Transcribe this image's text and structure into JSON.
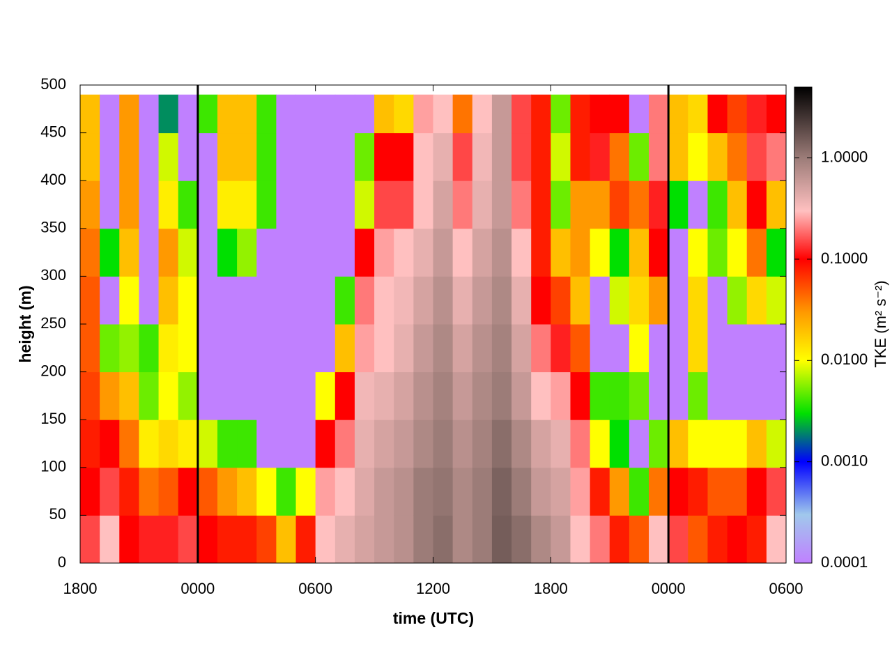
{
  "chart_data": {
    "type": "heatmap",
    "xlabel": "time (UTC)",
    "ylabel": "height (m)",
    "colorbar_label": "TKE (m² s⁻²)",
    "xlim": [
      0,
      36
    ],
    "xticks": [
      {
        "value": 0,
        "label": "1800"
      },
      {
        "value": 6,
        "label": "0000"
      },
      {
        "value": 12,
        "label": "0600"
      },
      {
        "value": 18,
        "label": "1200"
      },
      {
        "value": 24,
        "label": "1800"
      },
      {
        "value": 30,
        "label": "0000"
      },
      {
        "value": 36,
        "label": "0600"
      }
    ],
    "ylim": [
      0,
      500
    ],
    "yticks": [
      0,
      50,
      100,
      150,
      200,
      250,
      300,
      350,
      400,
      450,
      500
    ],
    "x_bins": [
      0,
      1,
      2,
      3,
      4,
      5,
      6,
      7,
      8,
      9,
      10,
      11,
      12,
      13,
      14,
      15,
      16,
      17,
      18,
      19,
      20,
      21,
      22,
      23,
      24,
      25,
      26,
      27,
      28,
      29,
      30,
      31,
      32,
      33,
      34,
      35,
      36
    ],
    "y_bins": [
      0,
      50,
      100,
      150,
      200,
      250,
      300,
      350,
      400,
      450,
      490
    ],
    "values": [
      [
        0.15,
        0.1,
        0.08,
        0.06,
        0.05,
        0.05,
        0.04,
        0.03,
        0.02,
        0.02
      ],
      [
        0.3,
        0.15,
        0.1,
        0.03,
        0.005,
        0.0001,
        0.003,
        0.0001,
        0.0001,
        0.0001
      ],
      [
        0.1,
        0.08,
        0.04,
        0.02,
        0.006,
        0.01,
        0.02,
        0.03,
        0.03,
        0.03
      ],
      [
        0.12,
        0.04,
        0.012,
        0.005,
        0.004,
        0.0001,
        0.0001,
        0.0001,
        0.0001,
        0.0001
      ],
      [
        0.12,
        0.05,
        0.015,
        0.01,
        0.012,
        0.02,
        0.03,
        0.012,
        0.008,
        0.002
      ],
      [
        0.15,
        0.1,
        0.012,
        0.006,
        0.01,
        0.01,
        0.008,
        0.004,
        0.0001,
        0.0001
      ],
      [
        0.1,
        0.05,
        0.008,
        0.0001,
        0.0001,
        0.0001,
        0.0001,
        0.0001,
        0.0001,
        0.004
      ],
      [
        0.08,
        0.03,
        0.004,
        0.0001,
        0.0001,
        0.0001,
        0.003,
        0.012,
        0.02,
        0.02
      ],
      [
        0.08,
        0.02,
        0.004,
        0.0001,
        0.0001,
        0.0001,
        0.006,
        0.012,
        0.02,
        0.02
      ],
      [
        0.06,
        0.01,
        0.0001,
        0.0001,
        0.0001,
        0.0001,
        0.0001,
        0.004,
        0.004,
        0.004
      ],
      [
        0.02,
        0.004,
        0.0001,
        0.0001,
        0.0001,
        0.0001,
        0.0001,
        0.0001,
        0.0001,
        0.0001
      ],
      [
        0.08,
        0.01,
        0.0001,
        0.0001,
        0.0001,
        0.0001,
        0.0001,
        0.0001,
        0.0001,
        0.0001
      ],
      [
        0.3,
        0.25,
        0.1,
        0.01,
        0.0001,
        0.0001,
        0.0001,
        0.0001,
        0.0001,
        0.0001
      ],
      [
        0.4,
        0.3,
        0.2,
        0.1,
        0.02,
        0.004,
        0.0001,
        0.0001,
        0.0001,
        0.0001
      ],
      [
        0.5,
        0.45,
        0.4,
        0.35,
        0.25,
        0.2,
        0.1,
        0.008,
        0.005,
        0.0001
      ],
      [
        0.6,
        0.6,
        0.5,
        0.4,
        0.3,
        0.3,
        0.25,
        0.15,
        0.1,
        0.02
      ],
      [
        0.7,
        0.7,
        0.6,
        0.5,
        0.4,
        0.35,
        0.3,
        0.15,
        0.1,
        0.015
      ],
      [
        1.0,
        1.0,
        0.8,
        0.7,
        0.6,
        0.5,
        0.4,
        0.3,
        0.3,
        0.25
      ],
      [
        1.2,
        1.1,
        1.0,
        0.9,
        0.8,
        0.7,
        0.6,
        0.5,
        0.4,
        0.3
      ],
      [
        0.8,
        0.8,
        0.7,
        0.6,
        0.5,
        0.4,
        0.3,
        0.2,
        0.15,
        0.04
      ],
      [
        1.0,
        1.0,
        0.9,
        0.8,
        0.7,
        0.6,
        0.5,
        0.4,
        0.35,
        0.3
      ],
      [
        1.5,
        1.4,
        1.2,
        1.0,
        0.9,
        0.8,
        0.7,
        0.6,
        0.6,
        0.6
      ],
      [
        1.2,
        1.0,
        0.8,
        0.6,
        0.5,
        0.4,
        0.3,
        0.2,
        0.15,
        0.15
      ],
      [
        0.8,
        0.6,
        0.5,
        0.3,
        0.2,
        0.1,
        0.08,
        0.08,
        0.08,
        0.08
      ],
      [
        0.6,
        0.5,
        0.4,
        0.25,
        0.12,
        0.06,
        0.02,
        0.005,
        0.008,
        0.005
      ],
      [
        0.3,
        0.25,
        0.2,
        0.1,
        0.05,
        0.02,
        0.03,
        0.03,
        0.08,
        0.08
      ],
      [
        0.2,
        0.08,
        0.01,
        0.004,
        0.0001,
        0.0001,
        0.01,
        0.03,
        0.12,
        0.1
      ],
      [
        0.08,
        0.03,
        0.003,
        0.004,
        0.0001,
        0.008,
        0.003,
        0.06,
        0.04,
        0.1
      ],
      [
        0.05,
        0.004,
        0.0001,
        0.005,
        0.01,
        0.015,
        0.02,
        0.04,
        0.005,
        0.0001
      ],
      [
        0.3,
        0.04,
        0.005,
        0.0001,
        0.0001,
        0.03,
        0.1,
        0.12,
        0.2,
        0.2
      ],
      [
        0.15,
        0.1,
        0.02,
        0.0001,
        0.0001,
        0.0001,
        0.0001,
        0.003,
        0.02,
        0.02
      ],
      [
        0.05,
        0.08,
        0.01,
        0.005,
        0.015,
        0.015,
        0.01,
        0.0001,
        0.01,
        0.015
      ],
      [
        0.08,
        0.05,
        0.01,
        0.0001,
        0.0001,
        0.0001,
        0.005,
        0.004,
        0.02,
        0.1
      ],
      [
        0.1,
        0.05,
        0.01,
        0.0001,
        0.0001,
        0.006,
        0.01,
        0.02,
        0.04,
        0.06
      ],
      [
        0.08,
        0.1,
        0.02,
        0.0001,
        0.0001,
        0.015,
        0.04,
        0.1,
        0.15,
        0.12
      ],
      [
        0.3,
        0.15,
        0.008,
        0.0001,
        0.0001,
        0.008,
        0.003,
        0.02,
        0.2,
        0.1
      ]
    ],
    "vlines": [
      6,
      30
    ],
    "vline_color": "#000000",
    "clim": [
      0.0001,
      5
    ],
    "clog": true,
    "cticks": [
      {
        "value": 0.0001,
        "label": "0.0001"
      },
      {
        "value": 0.001,
        "label": "0.0010"
      },
      {
        "value": 0.01,
        "label": "0.0100"
      },
      {
        "value": 0.1,
        "label": "0.1000"
      },
      {
        "value": 1,
        "label": "1.0000"
      }
    ],
    "colormap": [
      {
        "value": 0.0001,
        "color": "#c080ff"
      },
      {
        "value": 0.0003,
        "color": "#a0c8ec"
      },
      {
        "value": 0.001,
        "color": "#0000ff"
      },
      {
        "value": 0.003,
        "color": "#00e000"
      },
      {
        "value": 0.01,
        "color": "#ffff00"
      },
      {
        "value": 0.03,
        "color": "#ff9900"
      },
      {
        "value": 0.1,
        "color": "#ff0000"
      },
      {
        "value": 0.3,
        "color": "#ffc0c0"
      },
      {
        "value": 1,
        "color": "#9c7c78"
      },
      {
        "value": 5,
        "color": "#000000"
      }
    ]
  }
}
